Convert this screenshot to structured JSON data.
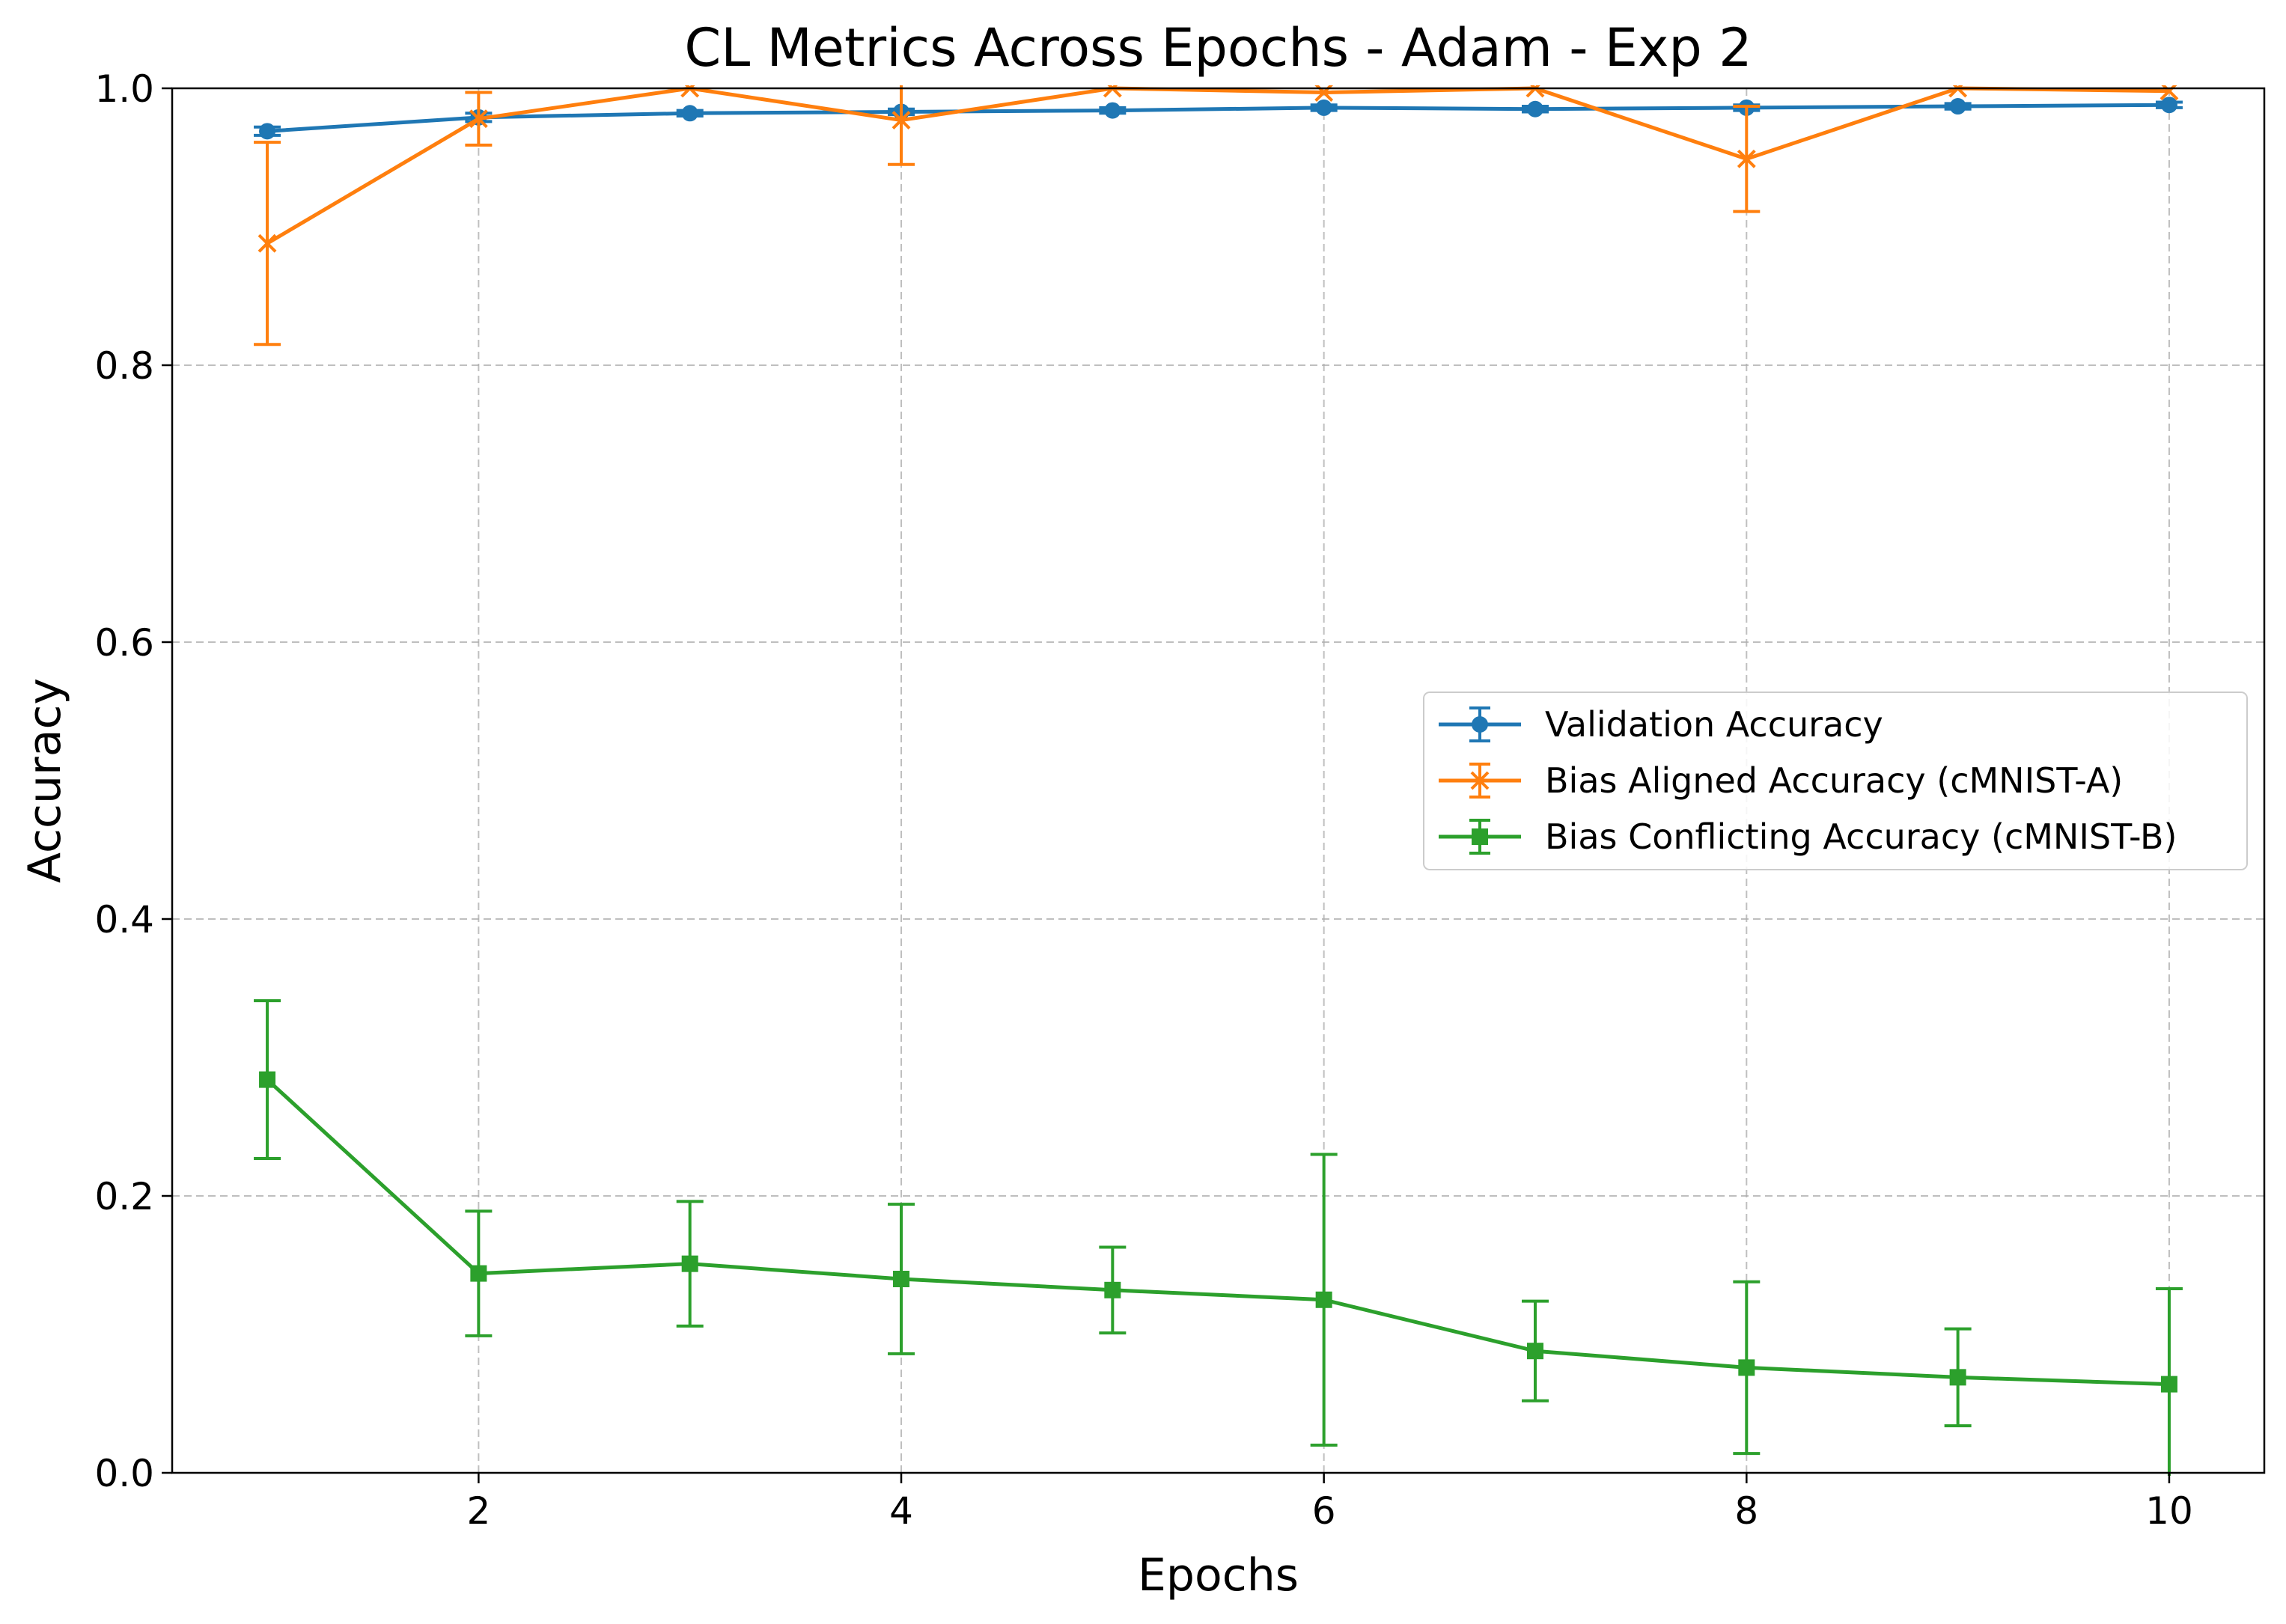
{
  "chart_data": {
    "type": "line",
    "title": "CL Metrics Across Epochs - Adam - Exp 2",
    "xlabel": "Epochs",
    "ylabel": "Accuracy",
    "xlim": [
      0.55,
      10.45
    ],
    "ylim": [
      0.0,
      1.0
    ],
    "xticks": [
      2,
      4,
      6,
      8,
      10
    ],
    "yticks": [
      0.0,
      0.2,
      0.4,
      0.6,
      0.8,
      1.0
    ],
    "xtick_labels": [
      "2",
      "4",
      "6",
      "8",
      "10"
    ],
    "ytick_labels": [
      "0.0",
      "0.2",
      "0.4",
      "0.6",
      "0.8",
      "1.0"
    ],
    "grid": true,
    "legend_position": "center-right",
    "x": [
      1,
      2,
      3,
      4,
      5,
      6,
      7,
      8,
      9,
      10
    ],
    "series": [
      {
        "name": "Validation Accuracy",
        "color": "#1f77b4",
        "marker": "circle",
        "values": [
          0.969,
          0.979,
          0.982,
          0.983,
          0.984,
          0.986,
          0.985,
          0.986,
          0.987,
          0.988
        ],
        "errors": [
          0.003,
          0.003,
          0.002,
          0.002,
          0.002,
          0.002,
          0.002,
          0.002,
          0.002,
          0.002
        ]
      },
      {
        "name": "Bias Aligned Accuracy (cMNIST-A)",
        "color": "#ff7f0e",
        "marker": "x",
        "values": [
          0.888,
          0.978,
          1.0,
          0.977,
          1.0,
          0.997,
          1.0,
          0.949,
          1.0,
          0.998
        ],
        "errors": [
          0.073,
          0.019,
          0.0,
          0.032,
          0.0,
          0.0,
          0.0,
          0.038,
          0.0,
          0.0
        ]
      },
      {
        "name": "Bias Conflicting Accuracy (cMNIST-B)",
        "color": "#2ca02c",
        "marker": "square",
        "values": [
          0.284,
          0.144,
          0.151,
          0.14,
          0.132,
          0.125,
          0.088,
          0.076,
          0.069,
          0.064
        ],
        "errors": [
          0.057,
          0.045,
          0.045,
          0.054,
          0.031,
          0.105,
          0.036,
          0.062,
          0.035,
          0.069
        ]
      }
    ]
  }
}
